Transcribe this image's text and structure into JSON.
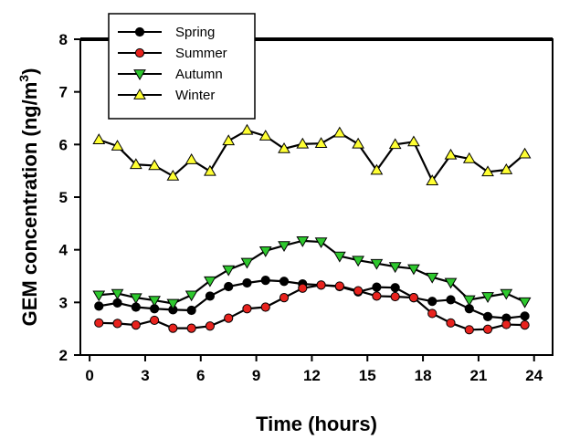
{
  "chart_data": {
    "type": "line",
    "xlabel": "Time (hours)",
    "ylabel_main": "GEM concentration (ng/m",
    "ylabel_sup": "3",
    "ylabel_tail": ")",
    "xlim": [
      -0.5,
      25
    ],
    "ylim": [
      2,
      8
    ],
    "xticks": [
      0,
      3,
      6,
      9,
      12,
      15,
      18,
      21,
      24
    ],
    "yticks": [
      2,
      3,
      4,
      5,
      6,
      7,
      8
    ],
    "grid": false,
    "legend_position": "top-left",
    "x": [
      0.5,
      1.5,
      2.5,
      3.5,
      4.5,
      5.5,
      6.5,
      7.5,
      8.5,
      9.5,
      10.5,
      11.5,
      12.5,
      13.5,
      14.5,
      15.5,
      16.5,
      17.5,
      18.5,
      19.5,
      20.5,
      21.5,
      22.5,
      23.5
    ],
    "series": [
      {
        "name": "Spring",
        "marker": "circle",
        "color": "#000000",
        "values": [
          2.93,
          2.99,
          2.91,
          2.88,
          2.86,
          2.85,
          3.12,
          3.3,
          3.37,
          3.42,
          3.4,
          3.35,
          3.33,
          3.3,
          3.2,
          3.29,
          3.28,
          3.09,
          3.02,
          3.05,
          2.88,
          2.73,
          2.7,
          2.74
        ]
      },
      {
        "name": "Summer",
        "marker": "circle",
        "color": "#e8231e",
        "values": [
          2.61,
          2.6,
          2.57,
          2.66,
          2.51,
          2.51,
          2.55,
          2.7,
          2.88,
          2.91,
          3.09,
          3.27,
          3.33,
          3.31,
          3.22,
          3.12,
          3.11,
          3.09,
          2.79,
          2.61,
          2.48,
          2.49,
          2.58,
          2.57
        ]
      },
      {
        "name": "Autumn",
        "marker": "triangle-down",
        "color": "#2ec82e",
        "values": [
          3.14,
          3.17,
          3.09,
          3.04,
          2.98,
          3.14,
          3.41,
          3.62,
          3.76,
          3.98,
          4.08,
          4.17,
          4.15,
          3.88,
          3.8,
          3.74,
          3.68,
          3.64,
          3.48,
          3.38,
          3.05,
          3.11,
          3.17,
          3.01
        ]
      },
      {
        "name": "Winter",
        "marker": "triangle-up",
        "color": "#ffff33",
        "values": [
          6.09,
          5.97,
          5.62,
          5.6,
          5.4,
          5.71,
          5.49,
          6.07,
          6.27,
          6.16,
          5.92,
          6.01,
          6.02,
          6.22,
          6.01,
          5.51,
          6.0,
          6.05,
          5.31,
          5.8,
          5.73,
          5.48,
          5.52,
          5.82
        ]
      }
    ]
  }
}
